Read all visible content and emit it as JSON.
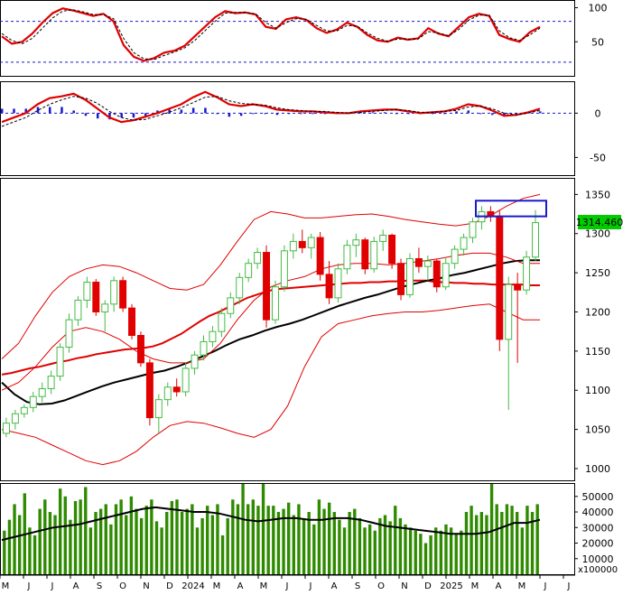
{
  "chart_data": [
    {
      "type": "line",
      "panel": "stochastic",
      "y_ticks": [
        "100",
        "50"
      ],
      "ylim": [
        0,
        110
      ],
      "reference_lines": [
        80,
        20
      ],
      "series": [
        {
          "color": "#e00000",
          "values": [
            58,
            47,
            50,
            62,
            78,
            92,
            99,
            96,
            92,
            88,
            91,
            80,
            45,
            28,
            22,
            26,
            34,
            37,
            44,
            58,
            72,
            86,
            95,
            92,
            93,
            90,
            72,
            69,
            83,
            86,
            82,
            70,
            63,
            68,
            78,
            72,
            60,
            52,
            50,
            56,
            53,
            55,
            70,
            62,
            58,
            72,
            86,
            91,
            88,
            60,
            54,
            50,
            64,
            72
          ]
        },
        {
          "color": "#000000",
          "values": [
            62,
            52,
            47,
            55,
            70,
            85,
            95,
            97,
            94,
            90,
            90,
            84,
            55,
            34,
            25,
            24,
            30,
            35,
            41,
            52,
            66,
            80,
            92,
            93,
            93,
            91,
            78,
            70,
            78,
            84,
            83,
            74,
            66,
            66,
            74,
            73,
            63,
            55,
            51,
            54,
            54,
            54,
            65,
            63,
            59,
            68,
            82,
            89,
            89,
            66,
            56,
            52,
            60,
            70
          ]
        }
      ]
    },
    {
      "type": "line",
      "panel": "macd",
      "y_ticks": [
        "0",
        "-50"
      ],
      "ylim": [
        -70,
        35
      ],
      "zero_line": 0,
      "series": [
        {
          "color": "#e00000",
          "values": [
            -10,
            -5,
            0,
            10,
            17,
            19,
            22,
            15,
            5,
            -5,
            -10,
            -8,
            -4,
            0,
            5,
            10,
            18,
            24,
            18,
            10,
            8,
            10,
            8,
            4,
            3,
            2,
            2,
            1,
            0,
            0,
            2,
            3,
            4,
            4,
            2,
            0,
            1,
            2,
            5,
            10,
            8,
            3,
            -3,
            -2,
            1,
            5
          ]
        },
        {
          "color": "#000000",
          "values": [
            -15,
            -10,
            -5,
            3,
            10,
            15,
            19,
            17,
            11,
            2,
            -5,
            -8,
            -7,
            -3,
            1,
            6,
            12,
            18,
            19,
            14,
            11,
            10,
            9,
            6,
            4,
            3,
            2,
            2,
            1,
            0,
            1,
            2,
            3,
            4,
            3,
            1,
            1,
            2,
            3,
            7,
            8,
            5,
            0,
            -2,
            0,
            3
          ]
        }
      ],
      "histogram_color": "#1a1acc",
      "histogram": [
        5,
        5,
        5,
        7,
        7,
        7,
        3,
        -3,
        -6,
        -7,
        -5,
        -5,
        -3,
        3,
        4,
        4,
        6,
        6,
        -1,
        -4,
        -3,
        0,
        -1,
        -2,
        -1,
        -1,
        0,
        -1,
        -1,
        0,
        1,
        1,
        1,
        0,
        -1,
        -1,
        0,
        0,
        2,
        3,
        0,
        -2,
        -3,
        0,
        1,
        2
      ]
    },
    {
      "type": "candlestick",
      "panel": "price",
      "y_ticks": [
        "1350",
        "1300",
        "1250",
        "1200",
        "1150",
        "1100",
        "1050",
        "1000"
      ],
      "ylim": [
        985,
        1370
      ],
      "last_price_label": "1314.460",
      "up_color": "#44bb44",
      "down_color": "#e00000",
      "candles": [
        [
          1045,
          1065,
          1040,
          1058
        ],
        [
          1058,
          1075,
          1050,
          1070
        ],
        [
          1070,
          1082,
          1065,
          1078
        ],
        [
          1078,
          1098,
          1072,
          1092
        ],
        [
          1092,
          1110,
          1085,
          1102
        ],
        [
          1102,
          1125,
          1095,
          1118
        ],
        [
          1118,
          1160,
          1112,
          1155
        ],
        [
          1155,
          1198,
          1148,
          1190
        ],
        [
          1190,
          1220,
          1182,
          1215
        ],
        [
          1215,
          1245,
          1205,
          1238
        ],
        [
          1238,
          1242,
          1195,
          1200
        ],
        [
          1200,
          1215,
          1175,
          1210
        ],
        [
          1210,
          1245,
          1200,
          1240
        ],
        [
          1240,
          1245,
          1200,
          1205
        ],
        [
          1205,
          1210,
          1165,
          1170
        ],
        [
          1170,
          1175,
          1130,
          1135
        ],
        [
          1135,
          1140,
          1055,
          1065
        ],
        [
          1065,
          1095,
          1045,
          1088
        ],
        [
          1088,
          1110,
          1080,
          1104
        ],
        [
          1104,
          1115,
          1092,
          1098
        ],
        [
          1098,
          1135,
          1092,
          1128
        ],
        [
          1128,
          1150,
          1120,
          1145
        ],
        [
          1145,
          1170,
          1138,
          1162
        ],
        [
          1162,
          1182,
          1155,
          1175
        ],
        [
          1175,
          1205,
          1168,
          1198
        ],
        [
          1198,
          1225,
          1192,
          1218
        ],
        [
          1218,
          1250,
          1210,
          1244
        ],
        [
          1244,
          1268,
          1238,
          1262
        ],
        [
          1262,
          1282,
          1255,
          1276
        ],
        [
          1276,
          1285,
          1180,
          1190
        ],
        [
          1190,
          1240,
          1185,
          1232
        ],
        [
          1232,
          1285,
          1226,
          1278
        ],
        [
          1278,
          1300,
          1268,
          1290
        ],
        [
          1290,
          1305,
          1275,
          1282
        ],
        [
          1282,
          1300,
          1268,
          1295
        ],
        [
          1295,
          1302,
          1240,
          1248
        ],
        [
          1248,
          1265,
          1210,
          1218
        ],
        [
          1218,
          1262,
          1212,
          1255
        ],
        [
          1255,
          1292,
          1248,
          1285
        ],
        [
          1285,
          1300,
          1270,
          1292
        ],
        [
          1292,
          1295,
          1248,
          1255
        ],
        [
          1255,
          1296,
          1250,
          1290
        ],
        [
          1290,
          1305,
          1278,
          1298
        ],
        [
          1298,
          1300,
          1255,
          1262
        ],
        [
          1262,
          1268,
          1215,
          1222
        ],
        [
          1222,
          1275,
          1218,
          1268
        ],
        [
          1268,
          1282,
          1250,
          1258
        ],
        [
          1258,
          1272,
          1240,
          1265
        ],
        [
          1265,
          1268,
          1225,
          1232
        ],
        [
          1232,
          1270,
          1228,
          1262
        ],
        [
          1262,
          1285,
          1255,
          1280
        ],
        [
          1280,
          1300,
          1272,
          1295
        ],
        [
          1295,
          1320,
          1288,
          1315
        ],
        [
          1315,
          1335,
          1305,
          1328
        ],
        [
          1328,
          1335,
          1315,
          1322
        ],
        [
          1322,
          1330,
          1150,
          1165
        ],
        [
          1165,
          1245,
          1075,
          1235
        ],
        [
          1235,
          1250,
          1135,
          1228
        ],
        [
          1228,
          1278,
          1222,
          1270
        ],
        [
          1270,
          1330,
          1265,
          1314
        ]
      ],
      "overlays": [
        {
          "name": "",
          "color": "#e00000",
          "width": 2,
          "values": [
            1120,
            1122,
            1125,
            1128,
            1130,
            1133,
            1136,
            1138,
            1141,
            1143,
            1146,
            1148,
            1150,
            1152,
            1153,
            1154,
            1156,
            1160,
            1166,
            1172,
            1180,
            1188,
            1195,
            1200,
            1206,
            1212,
            1218,
            1222,
            1226,
            1229,
            1230,
            1231,
            1232,
            1233,
            1234,
            1235,
            1236,
            1237,
            1237,
            1238,
            1238,
            1239,
            1239,
            1240,
            1240,
            1240,
            1238,
            1238,
            1237,
            1237,
            1236,
            1236,
            1235,
            1235,
            1235,
            1235,
            1234,
            1234
          ]
        },
        {
          "name": "",
          "color": "#000000",
          "width": 2,
          "values": [
            1110,
            1095,
            1085,
            1082,
            1083,
            1087,
            1093,
            1099,
            1105,
            1110,
            1114,
            1118,
            1122,
            1125,
            1130,
            1136,
            1143,
            1150,
            1158,
            1165,
            1170,
            1176,
            1181,
            1185,
            1190,
            1196,
            1202,
            1208,
            1213,
            1218,
            1222,
            1227,
            1232,
            1236,
            1240,
            1243,
            1247,
            1250,
            1254,
            1258,
            1262,
            1265,
            1266,
            1266
          ]
        },
        {
          "name": "",
          "color": "#e00000",
          "width": 1,
          "values": [
            1140,
            1160,
            1195,
            1225,
            1245,
            1255,
            1260,
            1258,
            1250,
            1240,
            1230,
            1228,
            1235,
            1260,
            1290,
            1318,
            1328,
            1325,
            1320,
            1320,
            1322,
            1324,
            1325,
            1322,
            1318,
            1315,
            1312,
            1310,
            1313,
            1322,
            1335,
            1345,
            1350
          ]
        },
        {
          "name": "",
          "color": "#e00000",
          "width": 1,
          "values": [
            1050,
            1045,
            1040,
            1030,
            1020,
            1010,
            1005,
            1010,
            1022,
            1040,
            1055,
            1060,
            1058,
            1052,
            1045,
            1040,
            1050,
            1080,
            1130,
            1168,
            1185,
            1190,
            1195,
            1198,
            1200,
            1200,
            1202,
            1205,
            1208,
            1210,
            1200,
            1190,
            1190
          ]
        },
        {
          "name": "",
          "color": "#e00000",
          "width": 1,
          "values": [
            1100,
            1110,
            1130,
            1155,
            1175,
            1180,
            1175,
            1165,
            1150,
            1140,
            1135,
            1135,
            1140,
            1160,
            1190,
            1215,
            1232,
            1240,
            1245,
            1255,
            1260,
            1262,
            1262,
            1260,
            1262,
            1265,
            1268,
            1272,
            1275,
            1275,
            1270,
            1262,
            1262
          ]
        }
      ],
      "highlight_box_color": "#1a1acc",
      "highlight_box": {
        "y": [
          1322,
          1342
        ]
      }
    },
    {
      "type": "bar",
      "panel": "volume",
      "y_ticks": [
        "50000",
        "40000",
        "30000",
        "20000",
        "10000"
      ],
      "ylim": [
        0,
        58000
      ],
      "unit_label": "x100000",
      "bar_color": "#2e8b00",
      "line_color": "#000000",
      "values": [
        28000,
        35000,
        45000,
        38000,
        52000,
        30000,
        25000,
        42000,
        48000,
        40000,
        38000,
        55000,
        50000,
        35000,
        47000,
        48000,
        56000,
        30000,
        40000,
        42000,
        45000,
        32000,
        45000,
        48000,
        38000,
        50000,
        42000,
        36000,
        44000,
        48000,
        34000,
        30000,
        40000,
        47000,
        48000,
        40000,
        42000,
        45000,
        30000,
        36000,
        44000,
        38000,
        45000,
        25000,
        36000,
        48000,
        45000,
        58000,
        45000,
        48000,
        44000,
        58000,
        44000,
        44000,
        40000,
        42000,
        46000,
        38000,
        45000,
        36000,
        40000,
        32000,
        48000,
        42000,
        46000,
        40000,
        35000,
        30000,
        40000,
        42000,
        36000,
        30000,
        32000,
        28000,
        36000,
        38000,
        34000,
        44000,
        36000,
        32000,
        30000,
        28000,
        26000,
        20000,
        25000,
        30000,
        28000,
        32000,
        30000,
        26000,
        28000,
        40000,
        44000,
        38000,
        40000,
        38000,
        58000,
        45000,
        40000,
        45000,
        44000,
        40000,
        30000,
        44000,
        40000,
        45000
      ],
      "line_values": [
        22000,
        24000,
        26000,
        28000,
        30000,
        31000,
        32000,
        34000,
        36000,
        38000,
        40000,
        42000,
        43000,
        42000,
        41000,
        40000,
        40000,
        39000,
        37000,
        35000,
        34000,
        35000,
        36000,
        36000,
        35000,
        35000,
        36000,
        36000,
        35000,
        33000,
        31000,
        30000,
        29000,
        28000,
        27000,
        26000,
        26000,
        26000,
        27000,
        30000,
        33000,
        33000,
        35000
      ]
    }
  ],
  "x_axis": {
    "labels": [
      "M",
      "J",
      "J",
      "A",
      "S",
      "O",
      "N",
      "D",
      "2024",
      "M",
      "A",
      "M",
      "J",
      "J",
      "A",
      "S",
      "O",
      "N",
      "D",
      "2025",
      "M",
      "A",
      "M",
      "J",
      "J"
    ]
  }
}
